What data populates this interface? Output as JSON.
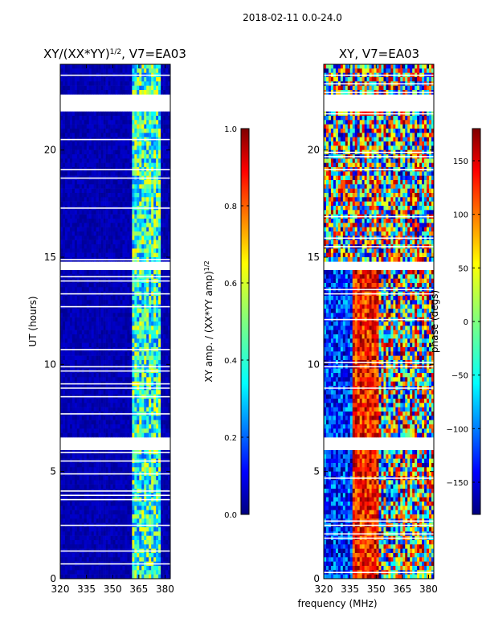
{
  "suptitle": "2018-02-11 0.0-24.0",
  "colors": {
    "background": "#ffffff",
    "axis": "#000000",
    "colormap": [
      "#00007f",
      "#0000ff",
      "#007fff",
      "#00ffff",
      "#7fff7f",
      "#ffff00",
      "#ff7f00",
      "#ff0000",
      "#7f0000"
    ]
  },
  "chart_data": [
    {
      "type": "heatmap",
      "title": "XY/(XX*YY)",
      "title_sup": "1/2",
      "title_suffix": ", V7=EA03",
      "xlabel": "",
      "ylabel": "UT (hours)",
      "xlim": [
        320,
        383
      ],
      "ylim": [
        0,
        24
      ],
      "xticks": [
        320,
        335,
        350,
        365,
        380
      ],
      "yticks": [
        0,
        5,
        10,
        15,
        20
      ],
      "signal_band": [
        361,
        378
      ],
      "gaps_hours": [
        [
          21.9,
          22.5
        ],
        [
          14.4,
          14.7
        ],
        [
          6.1,
          6.5
        ]
      ],
      "colorbar": {
        "label": "XY amp. / (XX*YY amp)",
        "label_sup": "1/2",
        "range": [
          0.0,
          1.0
        ],
        "ticks": [
          "0.0",
          "0.2",
          "0.4",
          "0.6",
          "0.8",
          "1.0"
        ]
      }
    },
    {
      "type": "heatmap",
      "title": "XY, V7=EA03",
      "xlabel": "frequency (MHz)",
      "ylabel": "",
      "xlim": [
        320,
        383
      ],
      "ylim": [
        0,
        24
      ],
      "xticks": [
        320,
        335,
        350,
        365,
        380
      ],
      "yticks": [
        0,
        5,
        10,
        15,
        20
      ],
      "gaps_hours": [
        [
          21.9,
          22.5
        ],
        [
          14.4,
          14.7
        ],
        [
          6.1,
          6.5
        ]
      ],
      "colorbar": {
        "label": "phase (degs)",
        "range": [
          -180,
          180
        ],
        "ticks": [
          "-150",
          "-100",
          "-50",
          "0",
          "50",
          "100",
          "150"
        ]
      }
    }
  ]
}
